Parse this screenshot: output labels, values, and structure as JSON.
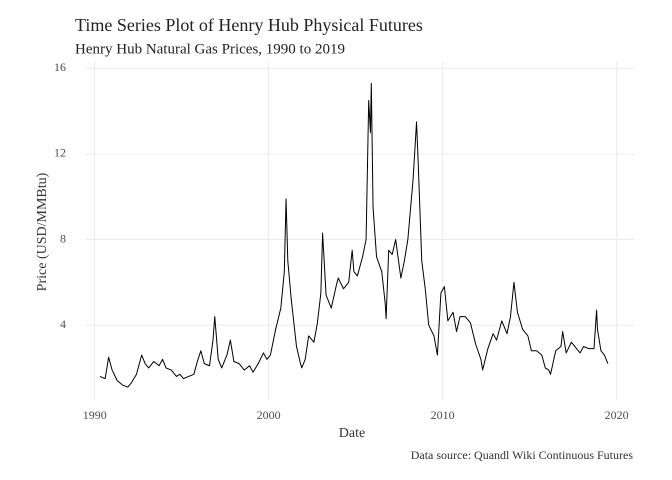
{
  "chart_data": {
    "type": "line",
    "title": "Time Series Plot of Henry Hub Physical Futures",
    "subtitle": "Henry Hub Natural Gas Prices, 1990 to 2019",
    "caption": "Data source: Quandl Wiki Continuous Futures",
    "x_label": "Date",
    "y_label": "Price (USD/MMBtu)",
    "xlim": [
      1989.5,
      2021
    ],
    "ylim": [
      0.5,
      16.3
    ],
    "xticks": [
      1990,
      2000,
      2010,
      2020
    ],
    "yticks": [
      4,
      8,
      12,
      16
    ],
    "grid": true,
    "color": "#000000",
    "x": [
      1990.3,
      1990.6,
      1990.8,
      1991.0,
      1991.3,
      1991.6,
      1991.9,
      1992.1,
      1992.4,
      1992.7,
      1992.9,
      1993.1,
      1993.4,
      1993.7,
      1993.9,
      1994.1,
      1994.4,
      1994.7,
      1994.9,
      1995.1,
      1995.4,
      1995.7,
      1995.9,
      1996.1,
      1996.3,
      1996.6,
      1996.8,
      1996.9,
      1997.1,
      1997.3,
      1997.6,
      1997.8,
      1998.0,
      1998.3,
      1998.6,
      1998.9,
      1999.1,
      1999.4,
      1999.7,
      1999.9,
      2000.1,
      2000.4,
      2000.7,
      2000.9,
      2001.0,
      2001.1,
      2001.3,
      2001.6,
      2001.8,
      2001.9,
      2002.1,
      2002.3,
      2002.6,
      2002.8,
      2003.0,
      2003.1,
      2003.3,
      2003.6,
      2003.9,
      2004.0,
      2004.3,
      2004.6,
      2004.8,
      2004.9,
      2005.1,
      2005.4,
      2005.6,
      2005.75,
      2005.85,
      2005.9,
      2006.0,
      2006.2,
      2006.5,
      2006.7,
      2006.75,
      2006.9,
      2007.1,
      2007.3,
      2007.6,
      2007.8,
      2008.0,
      2008.3,
      2008.5,
      2008.6,
      2008.8,
      2009.0,
      2009.2,
      2009.5,
      2009.7,
      2009.9,
      2010.1,
      2010.3,
      2010.6,
      2010.8,
      2011.0,
      2011.3,
      2011.6,
      2011.9,
      2012.2,
      2012.3,
      2012.6,
      2012.9,
      2013.1,
      2013.4,
      2013.7,
      2013.9,
      2014.1,
      2014.3,
      2014.6,
      2014.9,
      2015.1,
      2015.4,
      2015.7,
      2015.9,
      2016.1,
      2016.2,
      2016.5,
      2016.8,
      2016.9,
      2017.1,
      2017.4,
      2017.7,
      2017.9,
      2018.1,
      2018.4,
      2018.7,
      2018.85,
      2018.9,
      2019.1,
      2019.3,
      2019.5
    ],
    "values": [
      1.6,
      1.5,
      2.5,
      1.9,
      1.4,
      1.2,
      1.1,
      1.3,
      1.7,
      2.6,
      2.2,
      2.0,
      2.3,
      2.1,
      2.4,
      2.0,
      1.9,
      1.6,
      1.7,
      1.5,
      1.6,
      1.7,
      2.3,
      2.8,
      2.2,
      2.1,
      3.3,
      4.4,
      2.4,
      2.0,
      2.6,
      3.3,
      2.3,
      2.2,
      1.9,
      2.1,
      1.8,
      2.2,
      2.7,
      2.4,
      2.6,
      3.8,
      4.8,
      6.5,
      9.9,
      7.0,
      5.2,
      3.0,
      2.3,
      2.0,
      2.4,
      3.5,
      3.2,
      4.1,
      5.5,
      8.3,
      5.4,
      4.8,
      5.9,
      6.2,
      5.7,
      6.0,
      7.5,
      6.5,
      6.3,
      7.2,
      8.0,
      14.5,
      13.0,
      15.3,
      9.5,
      7.2,
      6.5,
      5.0,
      4.3,
      7.5,
      7.3,
      8.0,
      6.2,
      7.0,
      8.0,
      10.8,
      13.5,
      11.5,
      7.0,
      5.7,
      4.0,
      3.5,
      2.6,
      5.5,
      5.8,
      4.2,
      4.6,
      3.7,
      4.4,
      4.4,
      4.1,
      3.1,
      2.4,
      1.9,
      2.9,
      3.6,
      3.3,
      4.2,
      3.6,
      4.4,
      6.0,
      4.6,
      3.8,
      3.5,
      2.8,
      2.8,
      2.6,
      2.0,
      1.9,
      1.7,
      2.8,
      3.0,
      3.7,
      2.7,
      3.2,
      2.9,
      2.7,
      3.0,
      2.9,
      2.9,
      4.7,
      3.8,
      2.8,
      2.6,
      2.2
    ]
  }
}
